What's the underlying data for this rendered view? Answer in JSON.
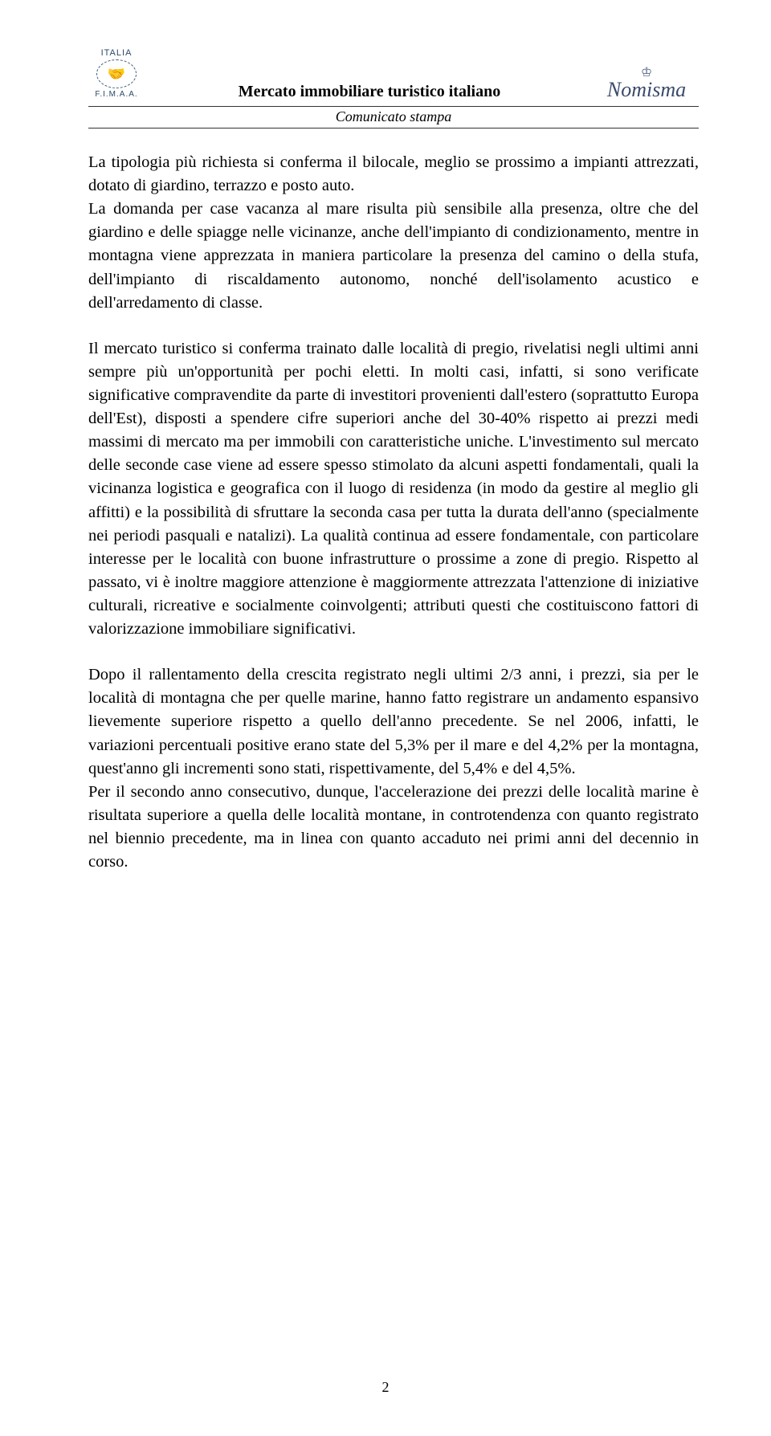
{
  "header": {
    "logo_left_top": "ITALIA",
    "logo_left_bottom": "F.I.M.A.A.",
    "title": "Mercato immobiliare turistico italiano",
    "subtitle": "Comunicato stampa",
    "logo_right": "Nomisma"
  },
  "paragraphs": {
    "p1": "La tipologia più richiesta si conferma il bilocale, meglio se prossimo a impianti attrezzati, dotato di giardino, terrazzo e posto auto.",
    "p2": "La domanda per case vacanza al mare risulta più sensibile alla presenza, oltre che del giardino e delle spiagge nelle vicinanze, anche dell'impianto di condizionamento, mentre in montagna viene apprezzata in maniera particolare la presenza del camino o della stufa, dell'impianto di riscaldamento autonomo, nonché dell'isolamento acustico e dell'arredamento di classe.",
    "p3": "Il mercato turistico si conferma trainato dalle località di pregio, rivelatisi negli ultimi anni sempre più un'opportunità per pochi eletti. In molti casi, infatti, si sono verificate significative compravendite da parte di investitori provenienti dall'estero (soprattutto Europa dell'Est), disposti a spendere cifre superiori anche del 30-40% rispetto ai prezzi medi massimi di mercato ma per immobili con caratteristiche uniche. L'investimento sul mercato delle seconde case viene ad essere spesso stimolato da alcuni aspetti fondamentali, quali la vicinanza logistica e geografica con il luogo di residenza (in modo da gestire al meglio gli affitti) e la possibilità di sfruttare la seconda casa per tutta la durata dell'anno (specialmente nei periodi pasquali e natalizi). La qualità continua ad essere fondamentale, con particolare interesse per le località con buone infrastrutture o prossime a zone di pregio. Rispetto al passato, vi è inoltre maggiore attenzione è maggiormente attrezzata l'attenzione di iniziative culturali, ricreative e socialmente coinvolgenti; attributi questi che costituiscono fattori di valorizzazione immobiliare significativi.",
    "p4": "Dopo il rallentamento della crescita registrato negli ultimi 2/3 anni, i prezzi, sia per le località di montagna che per quelle marine, hanno fatto registrare un andamento espansivo lievemente superiore rispetto a quello dell'anno precedente. Se nel 2006, infatti, le variazioni percentuali positive erano state del 5,3% per il mare e del 4,2% per la montagna, quest'anno gli incrementi sono stati, rispettivamente, del 5,4% e del 4,5%.",
    "p5": "Per il secondo anno consecutivo, dunque, l'accelerazione dei prezzi delle località marine è risultata superiore a quella delle località montane, in controtendenza con quanto registrato nel biennio precedente, ma in linea con quanto accaduto nei primi anni del decennio in corso."
  },
  "page_number": "2"
}
